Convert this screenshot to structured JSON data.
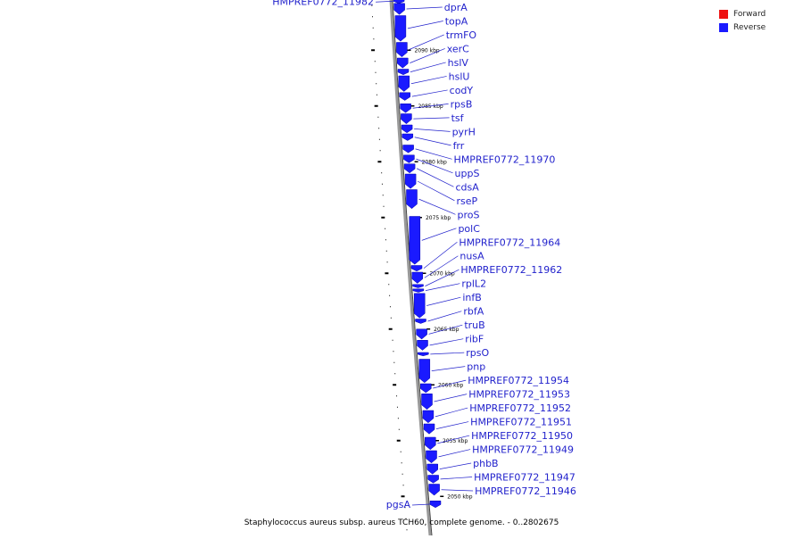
{
  "legend": {
    "forward_label": "Forward",
    "forward_color": "#ee1111",
    "reverse_label": "Reverse",
    "reverse_color": "#1a1aff"
  },
  "caption": "Staphylococcus aureus subsp. aureus TCH60, complete genome. - 0..2802675",
  "genome": {
    "view_start_kbp": 2094.5,
    "view_end_kbp": 2046.5,
    "tick_labels_kbp": [
      2090,
      2085,
      2080,
      2075,
      2070,
      2065,
      2060,
      2055,
      2050
    ],
    "tick_label_suffix": " kbp",
    "strand_color": "#1a1aff",
    "faded_color": "#9999ee"
  },
  "genes": [
    {
      "name": "HMPREF0772_11982",
      "strand": "left",
      "start_kbp": 2094.6,
      "end_kbp": 2094.2
    },
    {
      "name": "dprA",
      "strand": "right",
      "start_kbp": 2094.2,
      "end_kbp": 2093.2
    },
    {
      "name": "topA",
      "strand": "right",
      "start_kbp": 2093.1,
      "end_kbp": 2090.8
    },
    {
      "name": "trmFO",
      "strand": "right",
      "start_kbp": 2090.7,
      "end_kbp": 2089.4
    },
    {
      "name": "xerC",
      "strand": "right",
      "start_kbp": 2089.3,
      "end_kbp": 2088.4
    },
    {
      "name": "hslV",
      "strand": "right",
      "start_kbp": 2088.3,
      "end_kbp": 2087.8
    },
    {
      "name": "hslU",
      "strand": "right",
      "start_kbp": 2087.7,
      "end_kbp": 2086.3
    },
    {
      "name": "codY",
      "strand": "right",
      "start_kbp": 2086.2,
      "end_kbp": 2085.5
    },
    {
      "name": "rpsB",
      "strand": "right",
      "start_kbp": 2085.2,
      "end_kbp": 2084.4
    },
    {
      "name": "tsf",
      "strand": "right",
      "start_kbp": 2084.3,
      "end_kbp": 2083.4
    },
    {
      "name": "pyrH",
      "strand": "right",
      "start_kbp": 2083.3,
      "end_kbp": 2082.6
    },
    {
      "name": "frr",
      "strand": "right",
      "start_kbp": 2082.5,
      "end_kbp": 2081.9
    },
    {
      "name": "HMPREF0772_11970",
      "strand": "right",
      "start_kbp": 2081.5,
      "end_kbp": 2080.8
    },
    {
      "name": "uppS",
      "strand": "right",
      "start_kbp": 2080.6,
      "end_kbp": 2079.9
    },
    {
      "name": "cdsA",
      "strand": "right",
      "start_kbp": 2079.8,
      "end_kbp": 2079.0
    },
    {
      "name": "rseP",
      "strand": "right",
      "start_kbp": 2078.9,
      "end_kbp": 2077.6
    },
    {
      "name": "proS",
      "strand": "right",
      "start_kbp": 2077.5,
      "end_kbp": 2075.8
    },
    {
      "name": "polC",
      "strand": "right",
      "start_kbp": 2075.1,
      "end_kbp": 2070.8
    },
    {
      "name": "HMPREF0772_11964",
      "strand": "right",
      "start_kbp": 2070.7,
      "end_kbp": 2070.2
    },
    {
      "name": "nusA",
      "strand": "right",
      "start_kbp": 2070.1,
      "end_kbp": 2069.1
    },
    {
      "name": "HMPREF0772_11962",
      "strand": "right",
      "start_kbp": 2069.0,
      "end_kbp": 2068.7
    },
    {
      "name": "rplL2",
      "strand": "right",
      "start_kbp": 2068.6,
      "end_kbp": 2068.3
    },
    {
      "name": "infB",
      "strand": "right",
      "start_kbp": 2068.2,
      "end_kbp": 2066.0
    },
    {
      "name": "rbfA",
      "strand": "right",
      "start_kbp": 2065.9,
      "end_kbp": 2065.5
    },
    {
      "name": "truB",
      "strand": "right",
      "start_kbp": 2065.0,
      "end_kbp": 2064.1
    },
    {
      "name": "ribF",
      "strand": "right",
      "start_kbp": 2064.0,
      "end_kbp": 2063.1
    },
    {
      "name": "rpsO",
      "strand": "right",
      "start_kbp": 2062.9,
      "end_kbp": 2062.6
    },
    {
      "name": "pnp",
      "strand": "right",
      "start_kbp": 2062.3,
      "end_kbp": 2060.2
    },
    {
      "name": "HMPREF0772_11954",
      "strand": "right",
      "start_kbp": 2060.1,
      "end_kbp": 2059.3
    },
    {
      "name": "HMPREF0772_11953",
      "strand": "right",
      "start_kbp": 2059.2,
      "end_kbp": 2057.8
    },
    {
      "name": "HMPREF0772_11952",
      "strand": "right",
      "start_kbp": 2057.7,
      "end_kbp": 2056.6
    },
    {
      "name": "HMPREF0772_11951",
      "strand": "right",
      "start_kbp": 2056.5,
      "end_kbp": 2055.6
    },
    {
      "name": "HMPREF0772_11950",
      "strand": "right",
      "start_kbp": 2055.3,
      "end_kbp": 2054.2
    },
    {
      "name": "HMPREF0772_11949",
      "strand": "right",
      "start_kbp": 2054.1,
      "end_kbp": 2053.0
    },
    {
      "name": "phbB",
      "strand": "right",
      "start_kbp": 2052.9,
      "end_kbp": 2052.0
    },
    {
      "name": "HMPREF0772_11947",
      "strand": "right",
      "start_kbp": 2051.9,
      "end_kbp": 2051.2
    },
    {
      "name": "HMPREF0772_11946",
      "strand": "right",
      "start_kbp": 2051.1,
      "end_kbp": 2050.1
    },
    {
      "name": "pgsA",
      "strand": "left",
      "start_kbp": 2049.6,
      "end_kbp": 2049.0
    }
  ]
}
